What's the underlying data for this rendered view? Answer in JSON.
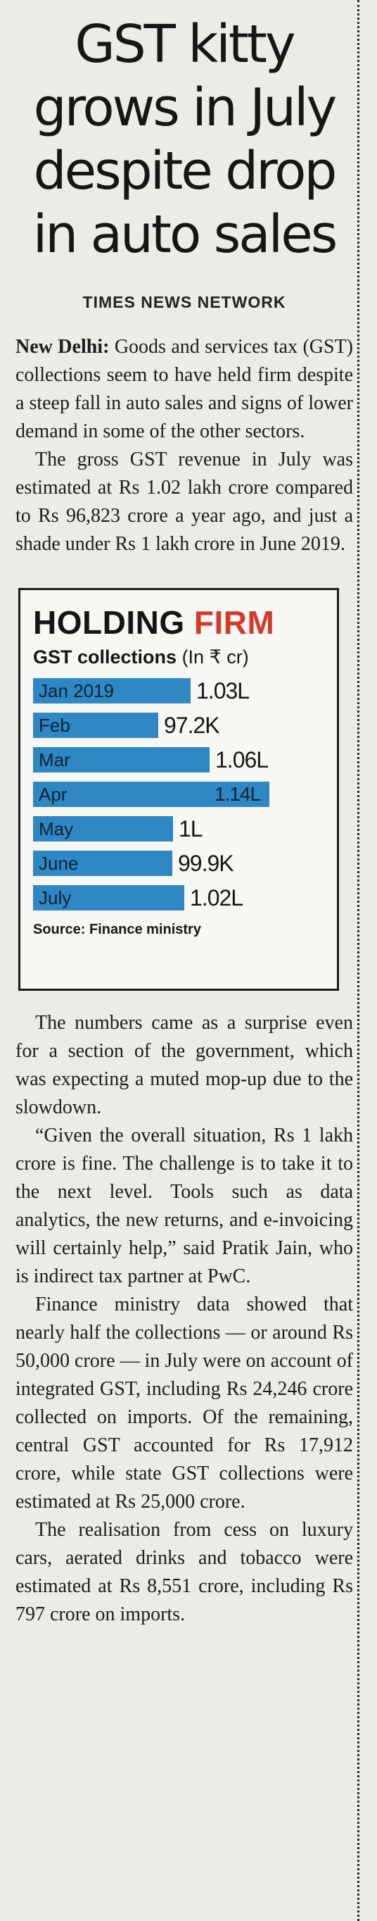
{
  "article": {
    "headline": [
      "GST kitty",
      "grows in July",
      "despite drop",
      "in auto sales"
    ],
    "byline": "TIMES NEWS NETWORK",
    "dateline": "New Delhi:",
    "paragraphs": [
      "Goods and services tax (GST) collections seem to have held firm despite a steep fall in auto sales and signs of lower demand in some of the other sectors.",
      "The gross GST revenue in July was estimated at Rs 1.02 lakh crore compared to Rs 96,823 crore a year ago, and just a shade under Rs 1 lakh crore in June 2019.",
      "The numbers came as a surprise even for a section of the government, which was expecting a muted mop-up due to the slowdown.",
      "“Given the overall situation, Rs 1 lakh crore is fine. The challenge is to take it to the next level. Tools such as data analytics, the new returns, and e-invoicing will certainly help,” said Pratik Jain, who is indirect tax partner at PwC.",
      "Finance ministry data showed that nearly half the collections — or around Rs 50,000 crore — in July were on account of integrated GST, including Rs 24,246 crore collected on imports. Of the remaining, central GST accounted for Rs 17,912 crore, while state GST collections were estimated at Rs 25,000 crore.",
      "The realisation from cess on luxury cars, aerated drinks and tobacco were estimated at Rs 8,551 crore, including Rs 797 crore on imports."
    ]
  },
  "chart_data": {
    "type": "bar",
    "orientation": "horizontal",
    "title_part1": "HOLDING ",
    "title_part2": "FIRM",
    "subtitle": "GST collections",
    "unit": "(In ₹ cr)",
    "categories": [
      "Jan 2019",
      "Feb",
      "Mar",
      "Apr",
      "May",
      "June",
      "July"
    ],
    "values": [
      103000,
      97200,
      106000,
      114000,
      100000,
      99900,
      102000
    ],
    "labels": [
      "1.03L",
      "97.2K",
      "1.06L",
      "1.14L",
      "1L",
      "99.9K",
      "1.02L"
    ],
    "source": "Source: Finance ministry",
    "colors": {
      "bar": "#2f87c4",
      "title_highlight": "#d33a2c"
    }
  }
}
